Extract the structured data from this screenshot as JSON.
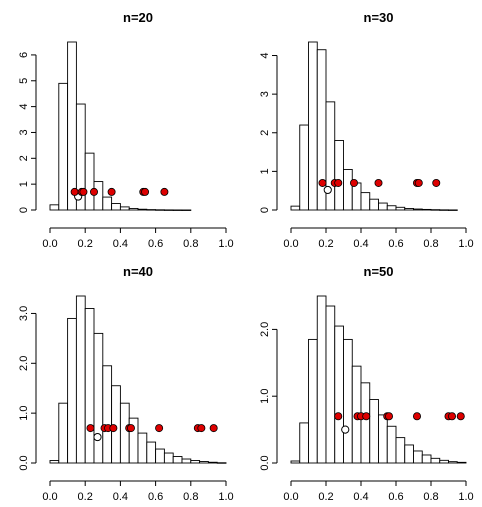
{
  "chart_data": [
    {
      "type": "bar",
      "title": "n=20",
      "xlim": [
        0,
        1
      ],
      "ylim": [
        0,
        6.5
      ],
      "xticks": [
        "0.0",
        "0.2",
        "0.4",
        "0.6",
        "0.8",
        "1.0"
      ],
      "yticks": [
        "0",
        "1",
        "2",
        "3",
        "4",
        "5",
        "6"
      ],
      "bin_width": 0.05,
      "bin_start": 0.0,
      "density": [
        0.2,
        4.9,
        6.5,
        4.1,
        2.2,
        1.1,
        0.5,
        0.25,
        0.12,
        0.06,
        0.03,
        0.015,
        0.008,
        0.004,
        0.002,
        0.001
      ],
      "red_points": [
        0.14,
        0.18,
        0.19,
        0.25,
        0.35,
        0.53,
        0.54,
        0.65
      ],
      "red_y": 0.7,
      "open_point": {
        "x": 0.16,
        "y": 0.52
      }
    },
    {
      "type": "bar",
      "title": "n=30",
      "xlim": [
        0,
        1
      ],
      "ylim": [
        0,
        4.35
      ],
      "xticks": [
        "0.0",
        "0.2",
        "0.4",
        "0.6",
        "0.8",
        "1.0"
      ],
      "yticks": [
        "0",
        "1",
        "2",
        "3",
        "4"
      ],
      "bin_width": 0.05,
      "bin_start": 0.0,
      "density": [
        0.1,
        2.2,
        4.35,
        4.15,
        2.8,
        1.8,
        1.05,
        0.7,
        0.45,
        0.28,
        0.18,
        0.11,
        0.07,
        0.04,
        0.025,
        0.015,
        0.008,
        0.004,
        0.002
      ],
      "red_points": [
        0.18,
        0.25,
        0.27,
        0.36,
        0.5,
        0.72,
        0.73,
        0.83
      ],
      "red_y": 0.7,
      "open_point": {
        "x": 0.21,
        "y": 0.52
      }
    },
    {
      "type": "bar",
      "title": "n=40",
      "xlim": [
        0,
        1
      ],
      "ylim": [
        0,
        3.35
      ],
      "xticks": [
        "0.0",
        "0.2",
        "0.4",
        "0.6",
        "0.8",
        "1.0"
      ],
      "yticks": [
        "0.0",
        "1.0",
        "2.0",
        "3.0"
      ],
      "bin_width": 0.05,
      "bin_start": 0.0,
      "density": [
        0.05,
        1.2,
        2.9,
        3.35,
        3.1,
        2.6,
        1.95,
        1.55,
        1.2,
        0.9,
        0.6,
        0.42,
        0.28,
        0.2,
        0.13,
        0.08,
        0.05,
        0.03,
        0.015,
        0.005
      ],
      "red_points": [
        0.23,
        0.31,
        0.33,
        0.36,
        0.45,
        0.46,
        0.62,
        0.84,
        0.86,
        0.93
      ],
      "red_y": 0.7,
      "open_point": {
        "x": 0.27,
        "y": 0.52
      }
    },
    {
      "type": "bar",
      "title": "n=50",
      "xlim": [
        0,
        1
      ],
      "ylim": [
        0,
        2.5
      ],
      "xticks": [
        "0.0",
        "0.2",
        "0.4",
        "0.6",
        "0.8",
        "1.0"
      ],
      "yticks": [
        "0.0",
        "1.0",
        "2.0"
      ],
      "bin_width": 0.05,
      "bin_start": 0.0,
      "density": [
        0.03,
        0.6,
        1.85,
        2.5,
        2.35,
        2.05,
        1.85,
        1.45,
        1.2,
        0.95,
        0.72,
        0.55,
        0.38,
        0.27,
        0.18,
        0.12,
        0.07,
        0.04,
        0.02,
        0.01
      ],
      "red_points": [
        0.27,
        0.38,
        0.4,
        0.43,
        0.55,
        0.56,
        0.72,
        0.9,
        0.92,
        0.97
      ],
      "red_y": 0.7,
      "open_point": {
        "x": 0.31,
        "y": 0.5
      }
    }
  ]
}
